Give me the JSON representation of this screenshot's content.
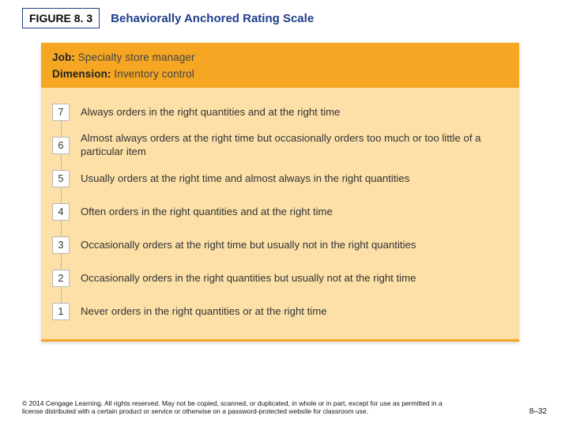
{
  "header": {
    "figure_label": "FIGURE 8. 3",
    "figure_title": "Behaviorally Anchored Rating Scale"
  },
  "panel": {
    "job_label": "Job:",
    "job_value": "Specialty store manager",
    "dimension_label": "Dimension:",
    "dimension_value": "Inventory control",
    "background_color": "#fce0a8",
    "band_color": "#f5a623"
  },
  "scale": [
    {
      "num": "7",
      "desc": "Always orders in the right quantities and at the right time"
    },
    {
      "num": "6",
      "desc": "Almost always orders at the right time but occasionally orders too much or too little of a particular item"
    },
    {
      "num": "5",
      "desc": "Usually orders at the right time and almost always in the right quantities"
    },
    {
      "num": "4",
      "desc": "Often orders in the right quantities and at the right time"
    },
    {
      "num": "3",
      "desc": "Occasionally orders at the right time but usually not in the right quantities"
    },
    {
      "num": "2",
      "desc": "Occasionally orders in the right quantities but usually not at the right time"
    },
    {
      "num": "1",
      "desc": "Never orders in the right quantities or at the right time"
    }
  ],
  "footer": {
    "copyright": "© 2014 Cengage Learning. All rights reserved. May not be copied, scanned, or duplicated, in whole or in part, except for use as permitted in a license distributed with a certain product or service or otherwise on a password-protected website for classroom use.",
    "page_number": "8–32"
  }
}
